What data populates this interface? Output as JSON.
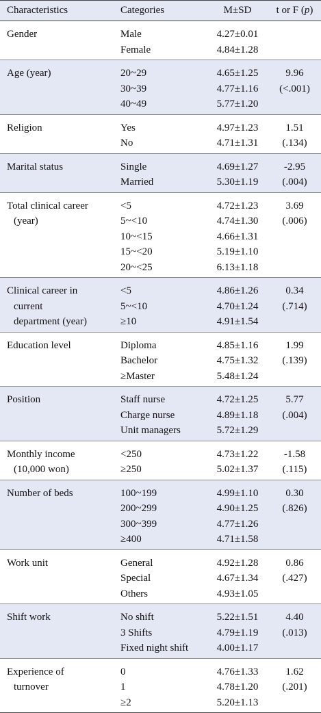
{
  "header": {
    "characteristics": "Characteristics",
    "categories": "Categories",
    "msd": "M±SD",
    "stat": {
      "prefix": "t or F (",
      "italic": "p",
      "suffix": ")"
    }
  },
  "groups": [
    {
      "characteristic": [
        "Gender"
      ],
      "categories": [
        "Male",
        "Female"
      ],
      "msd": [
        "4.27±0.01",
        "4.84±1.28"
      ]
    },
    {
      "characteristic": [
        "Age (year)"
      ],
      "categories": [
        "20~29",
        "30~39",
        "40~49"
      ],
      "msd": [
        "4.65±1.25",
        "4.77±1.16",
        "5.77±1.20"
      ],
      "t": "9.96",
      "p": "(<.001)"
    },
    {
      "characteristic": [
        "Religion"
      ],
      "categories": [
        "Yes",
        "No"
      ],
      "msd": [
        "4.97±1.23",
        "4.71±1.31"
      ],
      "t": "1.51",
      "p": "(.134)"
    },
    {
      "characteristic": [
        "Marital status"
      ],
      "categories": [
        "Single",
        "Married"
      ],
      "msd": [
        "4.69±1.27",
        "5.30±1.19"
      ],
      "t": "-2.95",
      "p": "(.004)"
    },
    {
      "characteristic": [
        "Total clinical career",
        "(year)"
      ],
      "categories": [
        "<5",
        "5~<10",
        "10~<15",
        "15~<20",
        "20~<25"
      ],
      "msd": [
        "4.72±1.23",
        "4.74±1.30",
        "4.66±1.31",
        "5.19±1.10",
        "6.13±1.18"
      ],
      "t": "3.69",
      "p": "(.006)"
    },
    {
      "characteristic": [
        "Clinical career in",
        "current",
        "department (year)"
      ],
      "categories": [
        "<5",
        "5~<10",
        "≥10"
      ],
      "msd": [
        "4.86±1.26",
        "4.70±1.24",
        "4.91±1.54"
      ],
      "t": "0.34",
      "p": "(.714)"
    },
    {
      "characteristic": [
        "Education level"
      ],
      "categories": [
        "Diploma",
        "Bachelor",
        "≥Master"
      ],
      "msd": [
        "4.85±1.16",
        "4.75±1.32",
        "5.48±1.24"
      ],
      "t": "1.99",
      "p": "(.139)"
    },
    {
      "characteristic": [
        "Position"
      ],
      "categories": [
        "Staff nurse",
        "Charge nurse",
        "Unit managers"
      ],
      "msd": [
        "4.72±1.25",
        "4.89±1.18",
        "5.72±1.29"
      ],
      "t": "5.77",
      "p": "(.004)"
    },
    {
      "characteristic": [
        "Monthly income",
        "(10,000 won)"
      ],
      "categories": [
        "<250",
        "≥250"
      ],
      "msd": [
        "4.73±1.22",
        "5.02±1.37"
      ],
      "t": "-1.58",
      "p": "(.115)"
    },
    {
      "characteristic": [
        "Number of beds"
      ],
      "categories": [
        "100~199",
        "200~299",
        "300~399",
        "≥400"
      ],
      "msd": [
        "4.99±1.10",
        "4.90±1.25",
        "4.77±1.26",
        "4.71±1.58"
      ],
      "t": "0.30",
      "p": "(.826)"
    },
    {
      "characteristic": [
        "Work unit"
      ],
      "categories": [
        "General",
        "Special",
        "Others"
      ],
      "msd": [
        "4.92±1.28",
        "4.67±1.34",
        "4.93±1.05"
      ],
      "t": "0.86",
      "p": "(.427)"
    },
    {
      "characteristic": [
        "Shift work"
      ],
      "categories": [
        "No shift",
        "3 Shifts",
        "Fixed night shift"
      ],
      "msd": [
        "5.22±1.51",
        "4.79±1.19",
        "4.00±1.17"
      ],
      "t": "4.40",
      "p": "(.013)"
    },
    {
      "characteristic": [
        "Experience of",
        "turnover"
      ],
      "categories": [
        "0",
        "1",
        "≥2"
      ],
      "msd": [
        "4.76±1.33",
        "4.78±1.20",
        "5.20±1.13"
      ],
      "t": "1.62",
      "p": "(.201)"
    }
  ]
}
